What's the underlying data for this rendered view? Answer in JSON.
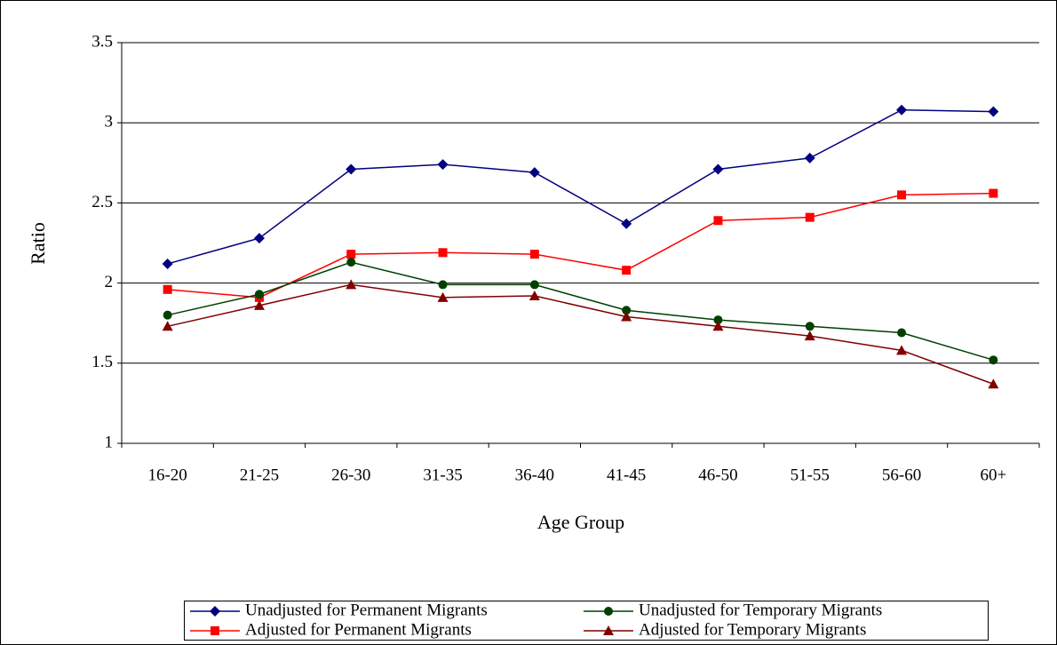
{
  "chart_data": {
    "type": "line",
    "x_label": "Age Group",
    "y_label": "Ratio",
    "categories": [
      "16-20",
      "21-25",
      "26-30",
      "31-35",
      "36-40",
      "41-45",
      "46-50",
      "51-55",
      "56-60",
      "60+"
    ],
    "series": [
      {
        "name": "Unadjusted for Permanent Migrants",
        "color": "#000080",
        "marker": "diamond",
        "values": [
          2.12,
          2.28,
          2.71,
          2.74,
          2.69,
          2.37,
          2.71,
          2.78,
          3.08,
          3.07
        ]
      },
      {
        "name": "Adjusted for Permanent Migrants",
        "color": "#ff0000",
        "marker": "square",
        "values": [
          1.96,
          1.91,
          2.18,
          2.19,
          2.18,
          2.08,
          2.39,
          2.41,
          2.55,
          2.56
        ]
      },
      {
        "name": "Unadjusted for Temporary Migrants",
        "color": "#004000",
        "marker": "circle",
        "values": [
          1.8,
          1.93,
          2.13,
          1.99,
          1.99,
          1.83,
          1.77,
          1.73,
          1.69,
          1.52
        ]
      },
      {
        "name": "Adjusted for Temporary Migrants",
        "color": "#800000",
        "marker": "triangle",
        "values": [
          1.73,
          1.86,
          1.99,
          1.91,
          1.92,
          1.79,
          1.73,
          1.67,
          1.58,
          1.37
        ]
      }
    ],
    "ylim": [
      1,
      3.5
    ],
    "yticks": [
      1,
      1.5,
      2,
      2.5,
      3,
      3.5
    ],
    "grid": true,
    "legend": "bottom"
  }
}
